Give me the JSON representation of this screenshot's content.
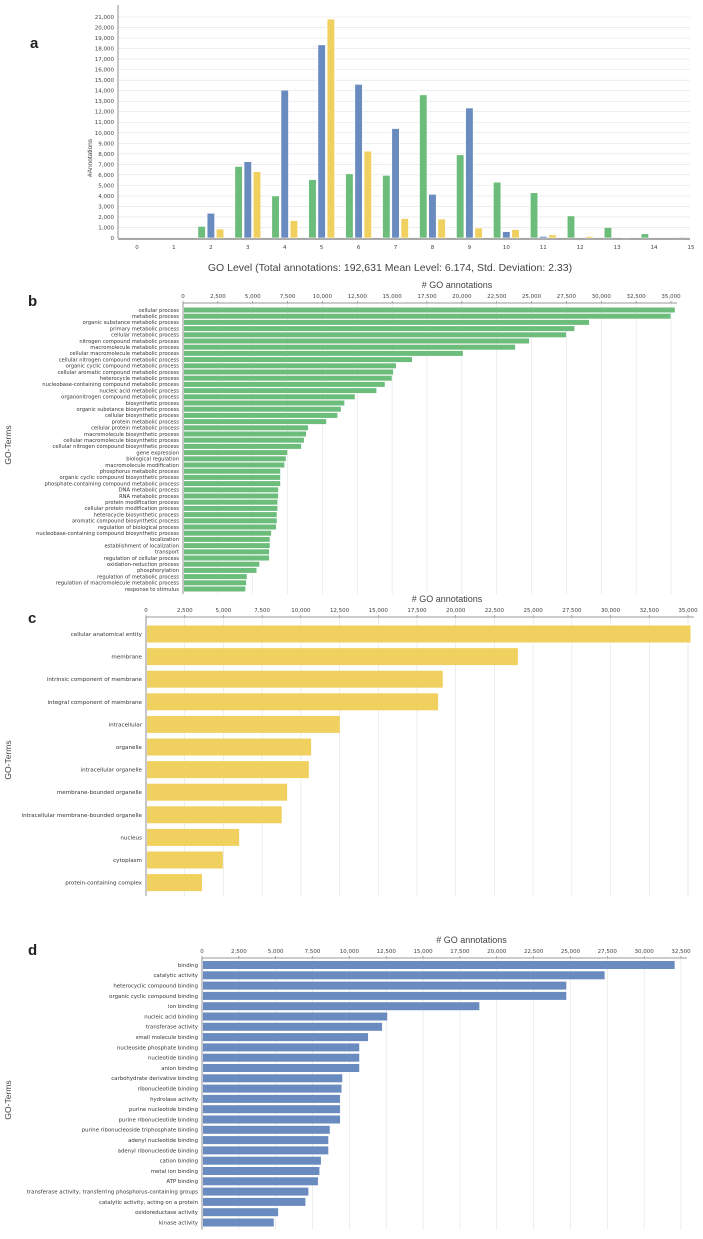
{
  "colors": {
    "bp": "#6cbd7b",
    "mf": "#6a8bc0",
    "cc": "#f0d15f",
    "grid": "#e2e2e2",
    "axis": "#777777"
  },
  "chart_data": [
    {
      "panel": "a",
      "type": "bar",
      "xlabel": "GO Level (Total annotations: 192,631 Mean Level: 6.174, Std. Deviation: 2.33)",
      "ylabel": "#Annotations",
      "categories": [
        "0",
        "1",
        "2",
        "3",
        "4",
        "5",
        "6",
        "7",
        "8",
        "9",
        "10",
        "11",
        "12",
        "13",
        "14",
        "15"
      ],
      "ylim": [
        0,
        21000
      ],
      "ytick_step": 1000,
      "grid": true,
      "series": [
        {
          "name": "green",
          "color_key": "bp",
          "values": [
            0,
            0,
            1100,
            6800,
            4000,
            5550,
            6100,
            5950,
            13600,
            7900,
            5300,
            4300,
            2100,
            1000,
            400,
            100
          ]
        },
        {
          "name": "blue",
          "color_key": "mf",
          "values": [
            0,
            0,
            2350,
            7250,
            14050,
            18350,
            14600,
            10400,
            4150,
            12350,
            600,
            150,
            0,
            0,
            0,
            0
          ]
        },
        {
          "name": "yellow",
          "color_key": "cc",
          "values": [
            0,
            0,
            850,
            6300,
            1650,
            20800,
            8250,
            1850,
            1800,
            950,
            800,
            300,
            150,
            50,
            0,
            0
          ]
        }
      ]
    },
    {
      "panel": "b",
      "type": "bar",
      "orientation": "horizontal",
      "xlabel": "# GO annotations",
      "ylabel": "GO-Terms",
      "xlim": [
        0,
        35000
      ],
      "xtick_step": 2500,
      "grid": true,
      "color_key": "bp",
      "categories": [
        "cellular process",
        "metabolic process",
        "organic substance metabolic process",
        "primary metabolic process",
        "cellular metabolic process",
        "nitrogen compound metabolic process",
        "macromolecule metabolic process",
        "cellular macromolecule metabolic process",
        "cellular nitrogen compound metabolic process",
        "organic cyclic compound metabolic process",
        "cellular aromatic compound metabolic process",
        "heterocycle metabolic process",
        "nucleobase-containing compound metabolic process",
        "nucleic acid metabolic process",
        "organonitrogen compound metabolic process",
        "biosynthetic process",
        "organic substance biosynthetic process",
        "cellular biosynthetic process",
        "protein metabolic process",
        "cellular protein metabolic process",
        "macromolecule biosynthetic process",
        "cellular macromolecule biosynthetic process",
        "cellular nitrogen compound biosynthetic process",
        "gene expression",
        "biological regulation",
        "macromolecule modification",
        "phosphorus metabolic process",
        "organic cyclic compound biosynthetic process",
        "phosphate-containing compound metabolic process",
        "DNA metabolic process",
        "RNA metabolic process",
        "protein modification process",
        "cellular protein modification process",
        "heterocycle biosynthetic process",
        "aromatic compound biosynthetic process",
        "regulation of biological process",
        "nucleobase-containing compound biosynthetic process",
        "localization",
        "establishment of localization",
        "transport",
        "regulation of cellular process",
        "oxidation-reduction process",
        "phosphorylation",
        "regulation of metabolic process",
        "regulation of macromolecule metabolic process",
        "response to stimulus"
      ],
      "values": [
        35200,
        34900,
        29050,
        28000,
        27400,
        24750,
        23750,
        20000,
        16350,
        15200,
        15000,
        14900,
        14400,
        13800,
        12250,
        11500,
        11250,
        11000,
        10200,
        8900,
        8750,
        8600,
        8400,
        7400,
        7300,
        7200,
        6900,
        6900,
        6900,
        6750,
        6750,
        6700,
        6700,
        6650,
        6650,
        6600,
        6250,
        6150,
        6150,
        6100,
        6100,
        5400,
        5200,
        4500,
        4450,
        4400
      ]
    },
    {
      "panel": "c",
      "type": "bar",
      "orientation": "horizontal",
      "xlabel": "# GO annotations",
      "ylabel": "GO-Terms",
      "xlim": [
        0,
        35000
      ],
      "xtick_step": 2500,
      "grid": true,
      "color_key": "cc",
      "categories": [
        "cellular anatomical entity",
        "membrane",
        "intrinsic component of membrane",
        "integral component of membrane",
        "intracellular",
        "organelle",
        "intracellular organelle",
        "membrane-bounded organelle",
        "intracellular membrane-bounded organelle",
        "nucleus",
        "cytoplasm",
        "protein-containing complex"
      ],
      "values": [
        35100,
        23950,
        19100,
        18800,
        12450,
        10600,
        10450,
        9050,
        8700,
        5950,
        4900,
        3550
      ]
    },
    {
      "panel": "d",
      "type": "bar",
      "orientation": "horizontal",
      "xlabel": "# GO annotations",
      "ylabel": "GO-Terms",
      "xlim": [
        0,
        32500
      ],
      "xtick_step": 2500,
      "grid": true,
      "color_key": "mf",
      "categories": [
        "binding",
        "catalytic activity",
        "heterocyclic compound binding",
        "organic cyclic compound binding",
        "ion binding",
        "nucleic acid binding",
        "transferase activity",
        "small molecule binding",
        "nucleoside phosphate binding",
        "nucleotide binding",
        "anion binding",
        "carbohydrate derivative binding",
        "ribonucleotide binding",
        "hydrolase activity",
        "purine nucleotide binding",
        "purine ribonucleotide binding",
        "purine ribonucleoside triphosphate binding",
        "adenyl nucleotide binding",
        "adenyl ribonucleotide binding",
        "cation binding",
        "metal ion binding",
        "ATP binding",
        "transferase activity, transferring phosphorus-containing groups",
        "catalytic activity, acting on a protein",
        "oxidoreductase activity",
        "kinase activity"
      ],
      "values": [
        32000,
        27250,
        24650,
        24650,
        18750,
        12500,
        12150,
        11200,
        10600,
        10600,
        10600,
        9450,
        9400,
        9300,
        9300,
        9300,
        8600,
        8500,
        8500,
        8000,
        7900,
        7800,
        7150,
        6950,
        5100,
        4800
      ]
    }
  ]
}
